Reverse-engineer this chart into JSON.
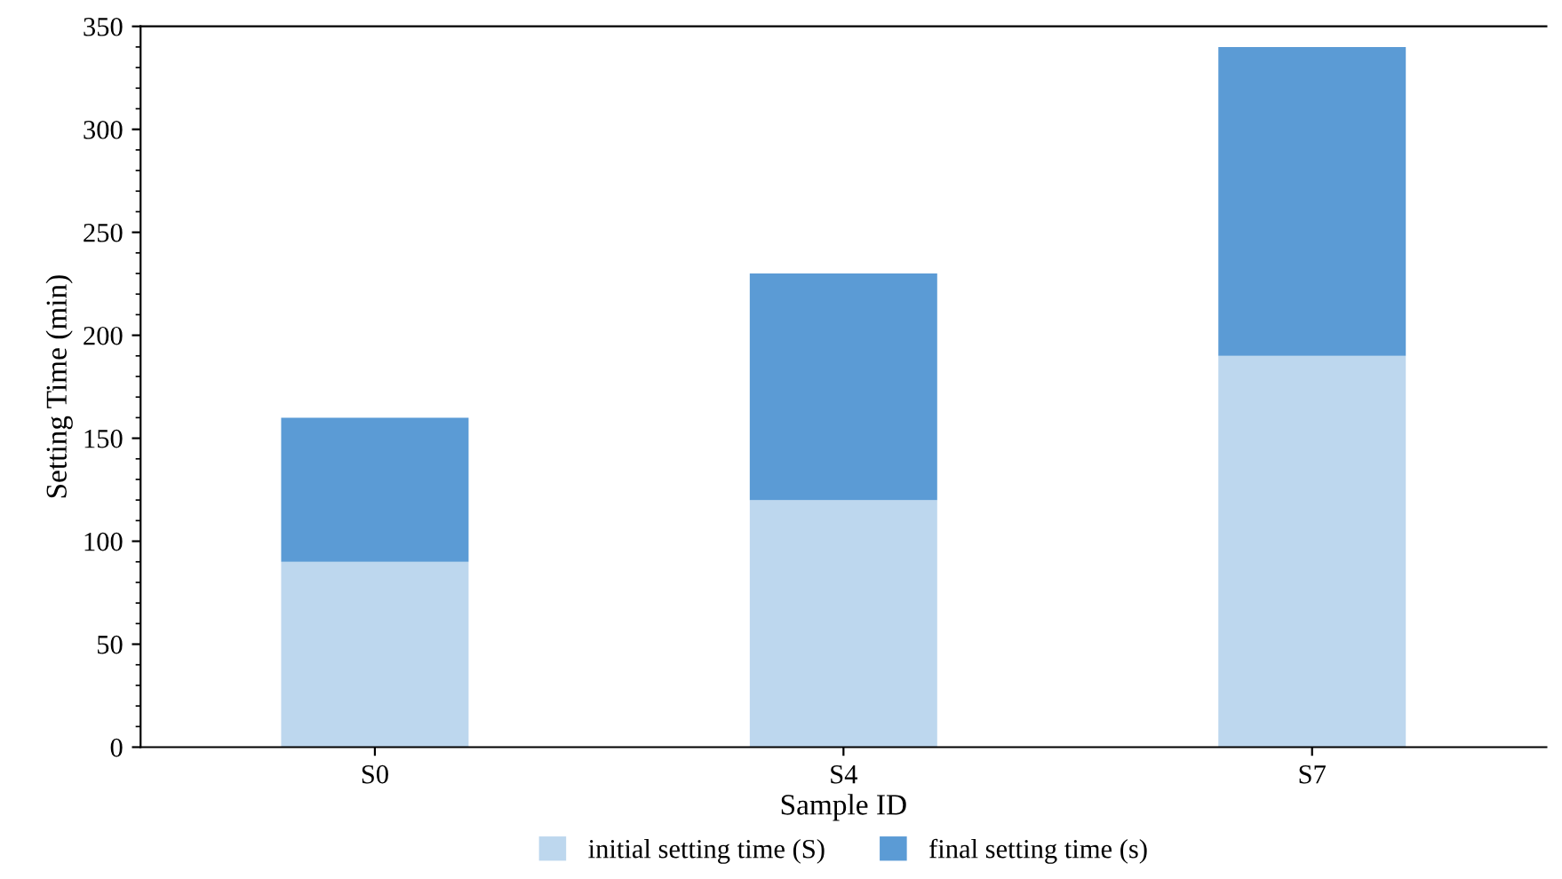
{
  "chart_data": {
    "type": "bar",
    "stacked": true,
    "xlabel": "Sample ID",
    "ylabel": "Setting Time (min)",
    "categories": [
      "S0",
      "S4",
      "S7"
    ],
    "series": [
      {
        "name": "initial setting time (S)",
        "color": "#bdd7ee",
        "values": [
          90,
          120,
          190
        ]
      },
      {
        "name": "final setting time (s)",
        "color": "#5b9bd5",
        "values": [
          70,
          110,
          150
        ]
      }
    ],
    "ylim": [
      0,
      350
    ],
    "yticks": [
      0,
      50,
      100,
      150,
      200,
      250,
      300,
      350
    ],
    "grid": false,
    "legend": "bottom"
  }
}
